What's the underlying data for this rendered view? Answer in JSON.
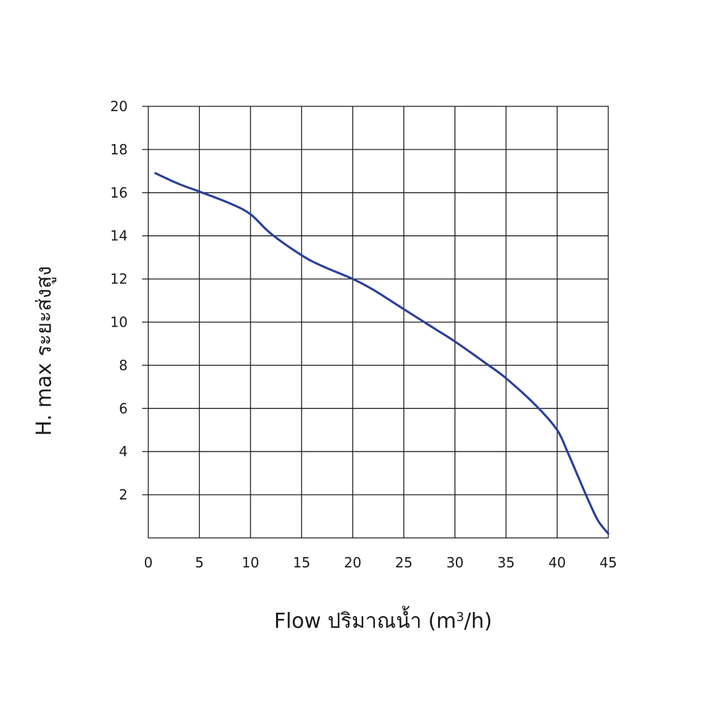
{
  "chart_data": {
    "type": "line",
    "xlabel_main": "Flow  ปริมาณน้ำ (m",
    "xlabel_sup": "3",
    "xlabel_tail": "/h)",
    "ylabel": "H. max  ระยะส่งสูง",
    "xlim": [
      0,
      45
    ],
    "ylim": [
      0,
      20
    ],
    "x_ticks": [
      0,
      5,
      10,
      15,
      20,
      25,
      30,
      35,
      40,
      45
    ],
    "x_tick_labels": [
      "0",
      "5",
      "10",
      "15",
      "20",
      "25",
      "30",
      "35",
      "40",
      "45"
    ],
    "y_ticks": [
      2,
      4,
      6,
      8,
      10,
      12,
      14,
      16,
      18,
      20
    ],
    "y_tick_labels": [
      "2",
      "4",
      "6",
      "8",
      "10",
      "12",
      "14",
      "16",
      "18",
      "20"
    ],
    "grid": true,
    "series": [
      {
        "color": "#2b3f99",
        "x": [
          0.7,
          3,
          5,
          8,
          10,
          12,
          15,
          17,
          20,
          22,
          25,
          28,
          30,
          33,
          35,
          38,
          40,
          41,
          42,
          43,
          44,
          45
        ],
        "y": [
          16.9,
          16.4,
          16.05,
          15.5,
          15.0,
          14.1,
          13.1,
          12.6,
          12.0,
          11.5,
          10.6,
          9.7,
          9.1,
          8.1,
          7.4,
          6.1,
          5.0,
          4.0,
          2.9,
          1.8,
          0.8,
          0.2
        ]
      }
    ]
  }
}
